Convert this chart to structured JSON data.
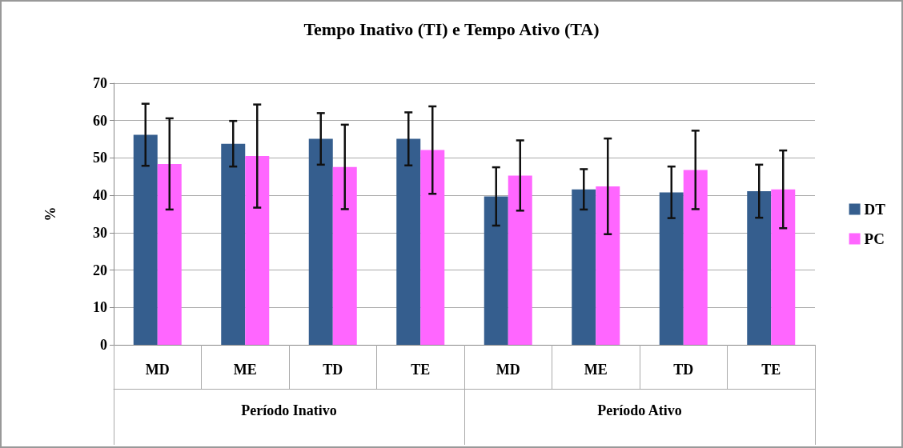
{
  "chart_data": {
    "type": "bar",
    "title": "Tempo Inativo (TI) e Tempo Ativo (TA)",
    "ylabel": "%",
    "categories": [
      "MD",
      "ME",
      "TD",
      "TE",
      "MD",
      "ME",
      "TD",
      "TE"
    ],
    "annotations": [
      "Período Inativo",
      "Período Ativo"
    ],
    "series": [
      {
        "name": "DT",
        "color": "#355e8e",
        "values": [
          56.2,
          53.8,
          55.1,
          55.1,
          39.7,
          41.6,
          40.8,
          41.1
        ],
        "errors": [
          8.3,
          6.1,
          6.9,
          7.1,
          7.8,
          5.4,
          6.9,
          7.1
        ]
      },
      {
        "name": "PC",
        "color": "#ff66ff",
        "values": [
          48.4,
          50.5,
          47.6,
          52.1,
          45.3,
          42.4,
          46.8,
          41.6
        ],
        "errors": [
          12.2,
          13.8,
          11.3,
          11.7,
          9.4,
          12.8,
          10.5,
          10.4
        ]
      }
    ],
    "ylim": [
      0,
      70
    ],
    "yticks": [
      0,
      10,
      20,
      30,
      40,
      50,
      60,
      70
    ],
    "grid": "y",
    "legend": "right"
  }
}
